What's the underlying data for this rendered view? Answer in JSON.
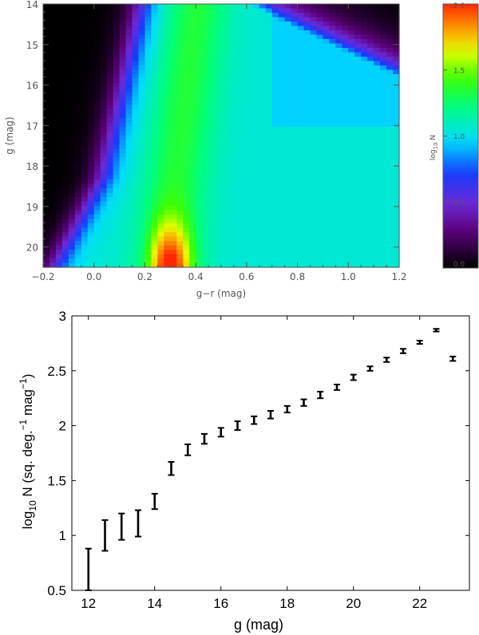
{
  "chart_data": [
    {
      "type": "heatmap",
      "title": "",
      "xlabel": "g−r (mag)",
      "ylabel": "g (mag)",
      "xlim": [
        -0.2,
        1.2
      ],
      "ylim": [
        20.5,
        14.0
      ],
      "x_ticks": [
        "−0.2",
        "0.0",
        "0.2",
        "0.4",
        "0.6",
        "0.8",
        "1.0",
        "1.2"
      ],
      "x_tick_values": [
        -0.2,
        0.0,
        0.2,
        0.4,
        0.6,
        0.8,
        1.0,
        1.2
      ],
      "y_ticks": [
        "14",
        "15",
        "16",
        "17",
        "18",
        "19",
        "20"
      ],
      "y_tick_values": [
        14,
        15,
        16,
        17,
        18,
        19,
        20
      ],
      "colorbar": {
        "label_prefix": "log",
        "label_sub": "10",
        "label_suffix": " N",
        "range": [
          0.0,
          2.0
        ],
        "ticks": [
          "0.0",
          "0.5",
          "1.0",
          "1.5",
          "2.0"
        ],
        "tick_values": [
          0.0,
          0.5,
          1.0,
          1.5,
          2.0
        ]
      },
      "density_model": {
        "main_sequence_ridge": [
          {
            "g": 14.0,
            "gr": 0.4
          },
          {
            "g": 15.0,
            "gr": 0.4
          },
          {
            "g": 16.0,
            "gr": 0.38
          },
          {
            "g": 17.0,
            "gr": 0.36
          },
          {
            "g": 18.0,
            "gr": 0.33
          },
          {
            "g": 19.0,
            "gr": 0.3
          },
          {
            "g": 20.5,
            "gr": 0.28
          }
        ],
        "peak_log10N": 2.0,
        "peak_location": {
          "gr": 0.28,
          "g": 20.4
        }
      }
    },
    {
      "type": "scatter",
      "title": "",
      "xlabel": "g (mag)",
      "ylabel_prefix": "log",
      "ylabel_sub": "10",
      "ylabel_main": " N (sq. deg.",
      "ylabel_sup1": "−1",
      "ylabel_mid": "  mag",
      "ylabel_sup2": "−1",
      "ylabel_end": ")",
      "xlim": [
        11.5,
        23.5
      ],
      "ylim": [
        0.5,
        3.0
      ],
      "x_ticks": [
        "12",
        "14",
        "16",
        "18",
        "20",
        "22"
      ],
      "x_tick_values": [
        12,
        14,
        16,
        18,
        20,
        22
      ],
      "y_ticks": [
        "0.5",
        "1",
        "1.5",
        "2",
        "2.5",
        "3"
      ],
      "y_tick_values": [
        0.5,
        1.0,
        1.5,
        2.0,
        2.5,
        3.0
      ],
      "error_bars": true,
      "x": [
        12.0,
        12.5,
        13.0,
        13.5,
        14.0,
        14.5,
        15.0,
        15.5,
        16.0,
        16.5,
        17.0,
        17.5,
        18.0,
        18.5,
        19.0,
        19.5,
        20.0,
        20.5,
        21.0,
        21.5,
        22.0,
        22.5,
        23.0
      ],
      "y": [
        0.69,
        1.0,
        1.08,
        1.11,
        1.31,
        1.61,
        1.78,
        1.88,
        1.94,
        2.0,
        2.05,
        2.1,
        2.15,
        2.21,
        2.28,
        2.35,
        2.44,
        2.52,
        2.6,
        2.68,
        2.76,
        2.87,
        2.61
      ],
      "y_err": [
        0.19,
        0.14,
        0.12,
        0.12,
        0.07,
        0.06,
        0.05,
        0.045,
        0.04,
        0.04,
        0.035,
        0.035,
        0.03,
        0.03,
        0.03,
        0.025,
        0.025,
        0.02,
        0.02,
        0.02,
        0.015,
        0.012,
        0.02
      ]
    }
  ]
}
